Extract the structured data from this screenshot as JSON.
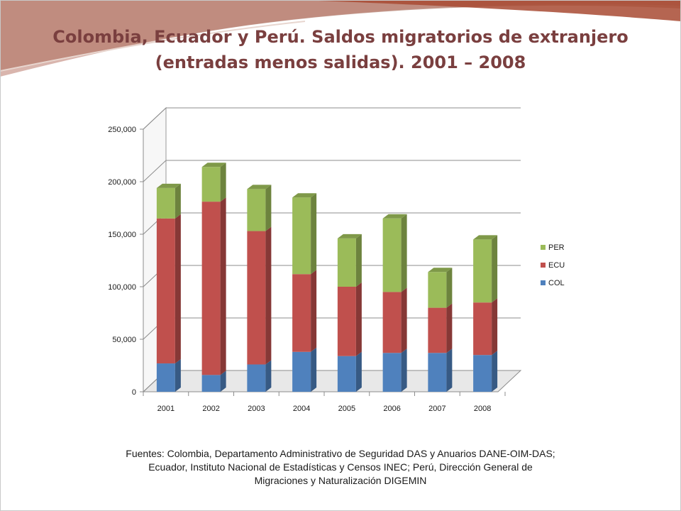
{
  "slide": {
    "title_line1": "Colombia, Ecuador y Perú. Saldos migratorios de extranjero",
    "title_line2": "(entradas menos salidas).  2001 – 2008",
    "source_lines": [
      "Fuentes: Colombia, Departamento Administrativo de Seguridad DAS y Anuarios DANE-OIM-DAS;",
      "Ecuador, Instituto Nacional de Estadísticas y Censos INEC; Perú, Dirección General de",
      "Migraciones y Naturalización DIGEMIN"
    ]
  },
  "chart_data": {
    "type": "bar",
    "stacked": true,
    "style": "3d-column",
    "categories": [
      "2001",
      "2002",
      "2003",
      "2004",
      "2005",
      "2006",
      "2007",
      "2008"
    ],
    "series": [
      {
        "name": "COL",
        "color": "#4f81bd",
        "values": [
          27000,
          16000,
          26000,
          38000,
          34000,
          37000,
          37000,
          35000
        ]
      },
      {
        "name": "ECU",
        "color": "#c0504d",
        "values": [
          138000,
          165000,
          127000,
          74000,
          66000,
          58000,
          43000,
          50000
        ]
      },
      {
        "name": "PER",
        "color": "#9bbb59",
        "values": [
          29000,
          33000,
          40000,
          73000,
          46000,
          70000,
          34000,
          60000
        ]
      }
    ],
    "yticks": [
      {
        "value": 0,
        "label": "0"
      },
      {
        "value": 50000,
        "label": "50,000"
      },
      {
        "value": 100000,
        "label": "100,000"
      },
      {
        "value": 150000,
        "label": "150,000"
      },
      {
        "value": 200000,
        "label": "200,000"
      },
      {
        "value": 250000,
        "label": "250,000"
      }
    ],
    "ylim": [
      0,
      250000
    ],
    "grid": true,
    "legend_position": "right",
    "legend_order": [
      "PER",
      "ECU",
      "COL"
    ]
  }
}
